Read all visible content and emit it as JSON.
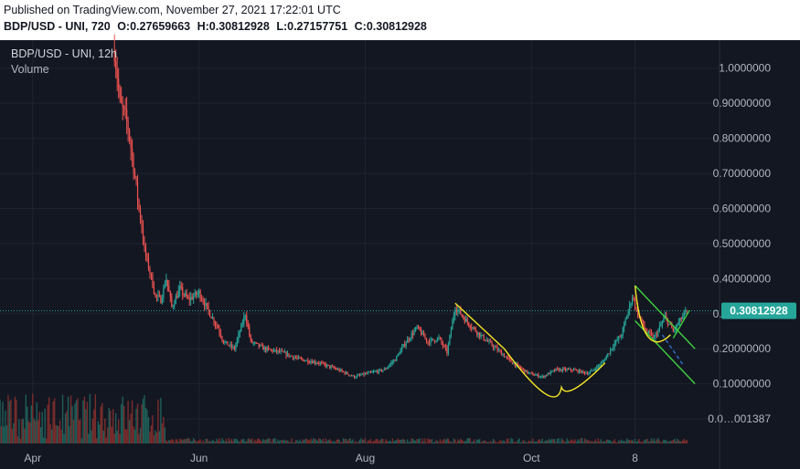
{
  "header": {
    "published": "Published on TradingView.com, November 27, 2021 17:22:01 UTC",
    "ohlc": {
      "symbol": "BDP/USD - UNI, 720",
      "o": "O:0.27659663",
      "h": "H:0.30812928",
      "l": "L:0.27157751",
      "c": "C:0.30812928"
    }
  },
  "legend": {
    "symbol": "BDP/USD - UNI, 12h",
    "volume": "Volume"
  },
  "chart_data": {
    "type": "candlestick",
    "title": "BDP/USD - UNI, 12h",
    "y_axis_ticks": [
      "1.0000000",
      "0.90000000",
      "0.80000000",
      "0.70000000",
      "0.60000000",
      "0.50000000",
      "0.40000000",
      "0.30000000",
      "0.20000000",
      "0.10000000",
      "0.0…001387"
    ],
    "y_axis_values": [
      1.0,
      0.9,
      0.8,
      0.7,
      0.6,
      0.5,
      0.4,
      0.3,
      0.2,
      0.1,
      0.0
    ],
    "x_axis_ticks": [
      "Apr",
      "Jun",
      "Aug",
      "Oct",
      "8"
    ],
    "x_axis_dates": [
      "2021-04-01",
      "2021-06-01",
      "2021-08-01",
      "2021-10-01",
      "2021-11-08"
    ],
    "ylim": [
      -0.07,
      1.08
    ],
    "xlim": [
      "2021-03-20",
      "2021-12-09"
    ],
    "last_price": "0.30812928",
    "last_price_value": 0.30812928,
    "price_path": [
      [
        "2021-05-01",
        1.05
      ],
      [
        "2021-05-02",
        0.98
      ],
      [
        "2021-05-03",
        0.9
      ],
      [
        "2021-05-05",
        0.86
      ],
      [
        "2021-05-06",
        0.83
      ],
      [
        "2021-05-08",
        0.72
      ],
      [
        "2021-05-10",
        0.6
      ],
      [
        "2021-05-11",
        0.55
      ],
      [
        "2021-05-12",
        0.48
      ],
      [
        "2021-05-14",
        0.42
      ],
      [
        "2021-05-16",
        0.35
      ],
      [
        "2021-05-18",
        0.34
      ],
      [
        "2021-05-20",
        0.4
      ],
      [
        "2021-05-22",
        0.32
      ],
      [
        "2021-05-25",
        0.37
      ],
      [
        "2021-05-28",
        0.34
      ],
      [
        "2021-06-01",
        0.36
      ],
      [
        "2021-06-05",
        0.3
      ],
      [
        "2021-06-08",
        0.26
      ],
      [
        "2021-06-10",
        0.22
      ],
      [
        "2021-06-14",
        0.2
      ],
      [
        "2021-06-18",
        0.3
      ],
      [
        "2021-06-20",
        0.22
      ],
      [
        "2021-06-25",
        0.2
      ],
      [
        "2021-07-01",
        0.19
      ],
      [
        "2021-07-08",
        0.17
      ],
      [
        "2021-07-15",
        0.16
      ],
      [
        "2021-07-22",
        0.14
      ],
      [
        "2021-07-28",
        0.12
      ],
      [
        "2021-08-02",
        0.13
      ],
      [
        "2021-08-08",
        0.14
      ],
      [
        "2021-08-12",
        0.17
      ],
      [
        "2021-08-16",
        0.22
      ],
      [
        "2021-08-20",
        0.26
      ],
      [
        "2021-08-24",
        0.22
      ],
      [
        "2021-08-28",
        0.23
      ],
      [
        "2021-08-31",
        0.19
      ],
      [
        "2021-09-03",
        0.32
      ],
      [
        "2021-09-07",
        0.28
      ],
      [
        "2021-09-12",
        0.24
      ],
      [
        "2021-09-18",
        0.2
      ],
      [
        "2021-09-24",
        0.16
      ],
      [
        "2021-09-30",
        0.13
      ],
      [
        "2021-10-05",
        0.12
      ],
      [
        "2021-10-10",
        0.14
      ],
      [
        "2021-10-16",
        0.14
      ],
      [
        "2021-10-22",
        0.13
      ],
      [
        "2021-10-27",
        0.16
      ],
      [
        "2021-10-31",
        0.21
      ],
      [
        "2021-11-03",
        0.24
      ],
      [
        "2021-11-07",
        0.35
      ],
      [
        "2021-11-09",
        0.3
      ],
      [
        "2021-11-12",
        0.25
      ],
      [
        "2021-11-15",
        0.23
      ],
      [
        "2021-11-19",
        0.29
      ],
      [
        "2021-11-22",
        0.25
      ],
      [
        "2021-11-27",
        0.31
      ]
    ],
    "volume_note": "Volume bars shown along the bottom",
    "annotations": [
      {
        "kind": "yellow-line",
        "from": [
          "2021-09-03",
          0.33
        ],
        "to": [
          "2021-09-21",
          0.2
        ]
      },
      {
        "kind": "yellow-cup-arc",
        "from": [
          "2021-09-21",
          0.2
        ],
        "bottom": [
          "2021-10-12",
          0.09
        ],
        "to": [
          "2021-10-28",
          0.16
        ]
      },
      {
        "kind": "green-channel-top",
        "from": [
          "2021-11-08",
          0.38
        ],
        "to": [
          "2021-11-30",
          0.2
        ]
      },
      {
        "kind": "green-channel-bottom",
        "from": [
          "2021-11-08",
          0.28
        ],
        "to": [
          "2021-11-30",
          0.1
        ]
      },
      {
        "kind": "yellow-small-arc",
        "from": [
          "2021-11-08",
          0.38
        ],
        "to": [
          "2021-11-21",
          0.24
        ]
      },
      {
        "kind": "green-breakout-line",
        "from": [
          "2021-11-22",
          0.23
        ],
        "to": [
          "2021-11-28",
          0.31
        ]
      },
      {
        "kind": "blue-dashed-projection",
        "from": [
          "2021-11-18",
          0.24
        ],
        "to": [
          "2021-11-26",
          0.15
        ]
      }
    ],
    "colors": {
      "background": "#131722",
      "grid": "#1f2330",
      "up": "#26a69a",
      "down": "#ef5350",
      "volume_up": "#1f5e58",
      "volume_down": "#7a2d2c",
      "price_label": "#26a69a",
      "annotation_yellow": "#f5e625",
      "annotation_green": "#3fd13f",
      "annotation_blue": "#2f6fcf"
    }
  }
}
